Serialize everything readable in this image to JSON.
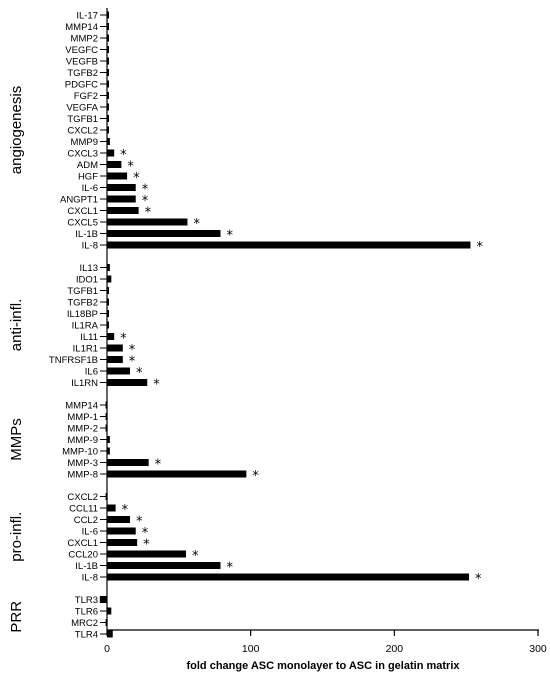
{
  "chart_data": {
    "type": "bar",
    "orientation": "horizontal",
    "xlabel": "fold change ASC monolayer to ASC in gelatin matrix",
    "xlim": [
      0,
      300
    ],
    "xticks": [
      0,
      100,
      200,
      300
    ],
    "significance_marker": "*",
    "groups": [
      {
        "name": "angiogenesis",
        "bars": [
          {
            "label": "IL-17",
            "value": 1,
            "significant": false
          },
          {
            "label": "MMP14",
            "value": 1,
            "significant": false
          },
          {
            "label": "MMP2",
            "value": 1,
            "significant": false
          },
          {
            "label": "VEGFC",
            "value": 1,
            "significant": false
          },
          {
            "label": "VEGFB",
            "value": 1,
            "significant": false
          },
          {
            "label": "TGFB2",
            "value": 1,
            "significant": false
          },
          {
            "label": "PDGFC",
            "value": 1,
            "significant": false
          },
          {
            "label": "FGF2",
            "value": 1,
            "significant": false
          },
          {
            "label": "VEGFA",
            "value": 1,
            "significant": false
          },
          {
            "label": "TGFB1",
            "value": 1,
            "significant": false
          },
          {
            "label": "CXCL2",
            "value": 1,
            "significant": false
          },
          {
            "label": "MMP9",
            "value": 2,
            "significant": false
          },
          {
            "label": "CXCL3",
            "value": 5,
            "significant": true
          },
          {
            "label": "ADM",
            "value": 10,
            "significant": true
          },
          {
            "label": "HGF",
            "value": 14,
            "significant": true
          },
          {
            "label": "IL-6",
            "value": 20,
            "significant": true
          },
          {
            "label": "ANGPT1",
            "value": 20,
            "significant": true
          },
          {
            "label": "CXCL1",
            "value": 22,
            "significant": true
          },
          {
            "label": "CXCL5",
            "value": 56,
            "significant": true
          },
          {
            "label": "IL-1B",
            "value": 79,
            "significant": true
          },
          {
            "label": "IL-8",
            "value": 253,
            "significant": true
          }
        ]
      },
      {
        "name": "anti-infl.",
        "bars": [
          {
            "label": "IL13",
            "value": 2,
            "significant": false
          },
          {
            "label": "IDO1",
            "value": 3,
            "significant": false
          },
          {
            "label": "TGFB1",
            "value": 1,
            "significant": false
          },
          {
            "label": "TGFB2",
            "value": 1,
            "significant": false
          },
          {
            "label": "IL18BP",
            "value": 1,
            "significant": false
          },
          {
            "label": "IL1RA",
            "value": 1,
            "significant": false
          },
          {
            "label": "IL11",
            "value": 5,
            "significant": true
          },
          {
            "label": "IL1R1",
            "value": 11,
            "significant": true
          },
          {
            "label": "TNFRSF1B",
            "value": 11,
            "significant": true
          },
          {
            "label": "IL6",
            "value": 16,
            "significant": true
          },
          {
            "label": "IL1RN",
            "value": 28,
            "significant": true
          }
        ]
      },
      {
        "name": "MMPs",
        "bars": [
          {
            "label": "MMP14",
            "value": -1,
            "significant": false
          },
          {
            "label": "MMP-1",
            "value": -1,
            "significant": false
          },
          {
            "label": "MMP-2",
            "value": -1,
            "significant": false
          },
          {
            "label": "MMP-9",
            "value": 2,
            "significant": false
          },
          {
            "label": "MMP-10",
            "value": 2,
            "significant": false
          },
          {
            "label": "MMP-3",
            "value": 29,
            "significant": true
          },
          {
            "label": "MMP-8",
            "value": 97,
            "significant": true
          }
        ]
      },
      {
        "name": "pro-infl.",
        "bars": [
          {
            "label": "CXCL2",
            "value": -1,
            "significant": false
          },
          {
            "label": "CCL11",
            "value": 6,
            "significant": true
          },
          {
            "label": "CCL2",
            "value": 16,
            "significant": true
          },
          {
            "label": "IL-6",
            "value": 20,
            "significant": true
          },
          {
            "label": "CXCL1",
            "value": 21,
            "significant": true
          },
          {
            "label": "CCL20",
            "value": 55,
            "significant": true
          },
          {
            "label": "IL-1B",
            "value": 79,
            "significant": true
          },
          {
            "label": "IL-8",
            "value": 252,
            "significant": true
          }
        ]
      },
      {
        "name": "PRR",
        "bars": [
          {
            "label": "TLR3",
            "value": -5,
            "significant": false
          },
          {
            "label": "TLR6",
            "value": 3,
            "significant": false
          },
          {
            "label": "MRC2",
            "value": -1,
            "significant": false
          },
          {
            "label": "TLR4",
            "value": 4,
            "significant": false
          }
        ]
      }
    ]
  }
}
